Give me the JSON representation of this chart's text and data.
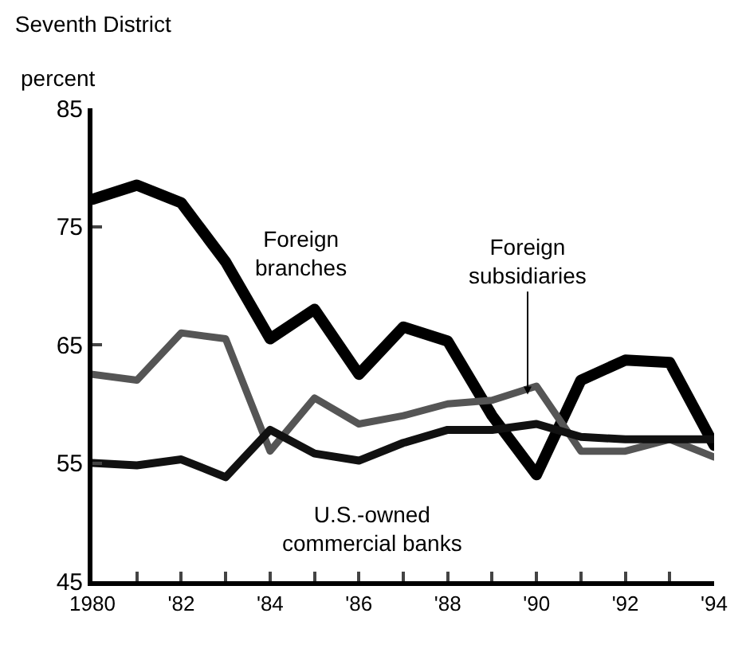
{
  "chart_data": {
    "type": "line",
    "title": "Seventh District",
    "ylabel": "percent",
    "x": [
      1980,
      1981,
      1982,
      1983,
      1984,
      1985,
      1986,
      1987,
      1988,
      1989,
      1990,
      1991,
      1992,
      1993,
      1994
    ],
    "series": [
      {
        "name": "Foreign branches",
        "color": "#000000",
        "values": [
          77.3,
          78.5,
          77,
          72,
          65.5,
          68,
          62.5,
          66.5,
          65.3,
          59,
          54,
          62,
          63.7,
          63.5,
          56.5
        ]
      },
      {
        "name": "Foreign subsidiaries",
        "color": "#555555",
        "values": [
          62.5,
          62,
          66,
          65.5,
          56,
          60.5,
          58.3,
          59,
          60,
          60.3,
          61.5,
          56,
          56,
          57,
          55.5
        ]
      },
      {
        "name": "U.S.-owned commercial banks",
        "color": "#111111",
        "values": [
          55,
          54.8,
          55.3,
          53.8,
          57.8,
          55.8,
          55.2,
          56.7,
          57.8,
          57.8,
          58.3,
          57.2,
          57,
          57,
          57
        ]
      }
    ],
    "xlim": [
      1980,
      1994
    ],
    "xticks": [
      {
        "value": 1980,
        "label": "1980"
      },
      {
        "value": 1981,
        "label": null
      },
      {
        "value": 1982,
        "label": "'82"
      },
      {
        "value": 1983,
        "label": null
      },
      {
        "value": 1984,
        "label": "'84"
      },
      {
        "value": 1985,
        "label": null
      },
      {
        "value": 1986,
        "label": "'86"
      },
      {
        "value": 1987,
        "label": null
      },
      {
        "value": 1988,
        "label": "'88"
      },
      {
        "value": 1989,
        "label": null
      },
      {
        "value": 1990,
        "label": "'90"
      },
      {
        "value": 1991,
        "label": null
      },
      {
        "value": 1992,
        "label": "'92"
      },
      {
        "value": 1993,
        "label": null
      },
      {
        "value": 1994,
        "label": "'94"
      }
    ],
    "ylim": [
      45,
      85
    ],
    "yticks": [
      45,
      55,
      65,
      75,
      85
    ],
    "grid": false,
    "legend": false,
    "marker": "none",
    "line_style": "solid"
  }
}
